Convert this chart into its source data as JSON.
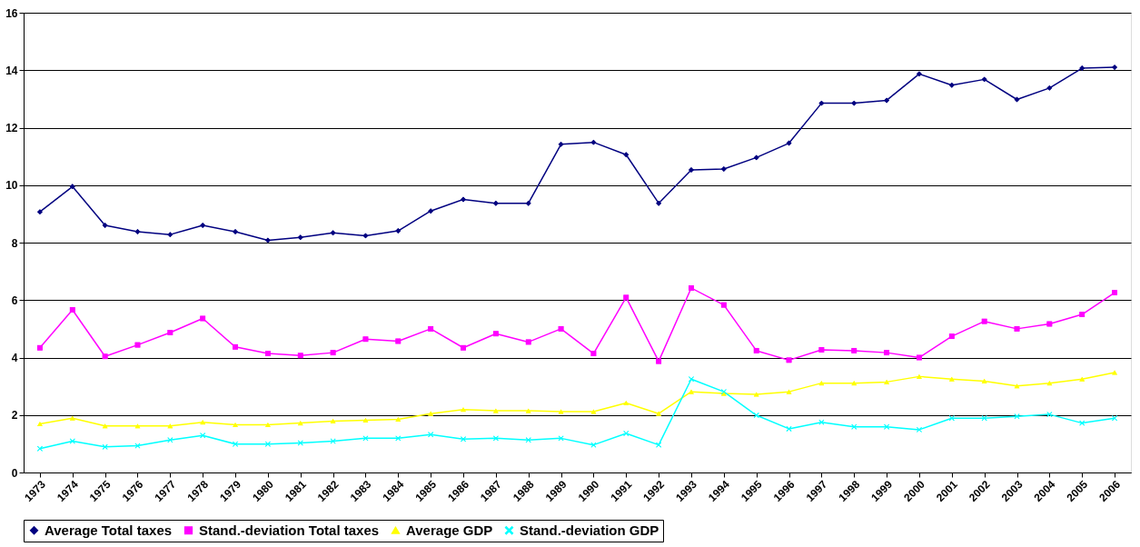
{
  "chart_data": {
    "type": "line",
    "categories": [
      "1973",
      "1974",
      "1975",
      "1976",
      "1977",
      "1978",
      "1979",
      "1980",
      "1981",
      "1982",
      "1983",
      "1984",
      "1985",
      "1986",
      "1987",
      "1988",
      "1989",
      "1990",
      "1991",
      "1992",
      "1993",
      "1994",
      "1995",
      "1996",
      "1997",
      "1998",
      "1999",
      "2000",
      "2001",
      "2002",
      "2003",
      "2004",
      "2005",
      "2006"
    ],
    "series": [
      {
        "name": "Average Total taxes",
        "color": "#000080",
        "marker": "diamond",
        "values": [
          9.07,
          9.95,
          8.6,
          8.38,
          8.28,
          8.6,
          8.38,
          8.08,
          8.18,
          8.34,
          8.24,
          8.41,
          9.1,
          9.5,
          9.37,
          9.37,
          11.42,
          11.49,
          11.06,
          9.37,
          10.53,
          10.56,
          10.96,
          11.46,
          12.85,
          12.85,
          12.95,
          13.87,
          13.48,
          13.68,
          12.98,
          13.38,
          14.07,
          14.1
        ]
      },
      {
        "name": "Stand.-deviation Total taxes",
        "color": "#ff00ff",
        "marker": "square",
        "values": [
          4.34,
          5.66,
          4.04,
          4.44,
          4.87,
          5.36,
          4.37,
          4.14,
          4.07,
          4.17,
          4.64,
          4.57,
          5.0,
          4.34,
          4.83,
          4.54,
          5.0,
          4.14,
          6.09,
          3.87,
          6.42,
          5.83,
          4.24,
          3.91,
          4.27,
          4.24,
          4.17,
          4.0,
          4.74,
          5.26,
          5.0,
          5.17,
          5.5,
          6.26
        ]
      },
      {
        "name": "Average GDP",
        "color": "#ffff00",
        "marker": "triangle",
        "values": [
          1.69,
          1.89,
          1.62,
          1.62,
          1.62,
          1.75,
          1.66,
          1.66,
          1.72,
          1.79,
          1.82,
          1.85,
          2.05,
          2.19,
          2.15,
          2.15,
          2.12,
          2.12,
          2.42,
          2.05,
          2.81,
          2.75,
          2.72,
          2.81,
          3.11,
          3.11,
          3.15,
          3.34,
          3.25,
          3.18,
          3.01,
          3.11,
          3.25,
          3.48
        ]
      },
      {
        "name": "Stand.-deviation GDP",
        "color": "#00ffff",
        "marker": "cross",
        "values": [
          0.83,
          1.09,
          0.89,
          0.93,
          1.13,
          1.29,
          0.99,
          0.99,
          1.03,
          1.09,
          1.19,
          1.19,
          1.32,
          1.16,
          1.19,
          1.13,
          1.19,
          0.96,
          1.36,
          0.96,
          3.25,
          2.81,
          1.99,
          1.52,
          1.75,
          1.59,
          1.59,
          1.49,
          1.89,
          1.89,
          1.95,
          2.02,
          1.72,
          1.89
        ]
      }
    ],
    "ylim": [
      0,
      16
    ],
    "yticks": [
      0,
      2,
      4,
      6,
      8,
      10,
      12,
      14,
      16
    ],
    "grid": "y",
    "legend": "bottom",
    "line_style": "solid"
  }
}
